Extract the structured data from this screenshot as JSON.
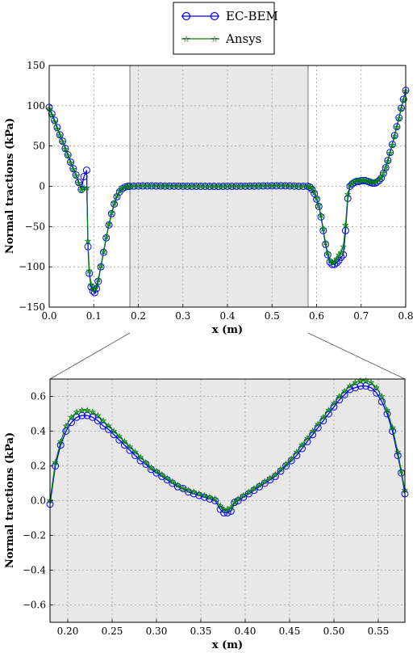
{
  "legend": {
    "entries": [
      {
        "label": "EC-BEM",
        "color": "#0000ff",
        "marker": "circle"
      },
      {
        "label": "Ansys",
        "color": "#008000",
        "marker": "star"
      }
    ]
  },
  "chart_data": [
    {
      "type": "line",
      "id": "full",
      "xlabel": "x (m)",
      "ylabel": "Normal tractions (kPa)",
      "xlim": [
        0.0,
        0.8
      ],
      "ylim": [
        -150,
        150
      ],
      "xticks": [
        0.0,
        0.1,
        0.2,
        0.3,
        0.4,
        0.5,
        0.6,
        0.7,
        0.8
      ],
      "xtick_labels": [
        "0.0",
        "0.1",
        "0.2",
        "0.3",
        "0.4",
        "0.5",
        "0.6",
        "0.7",
        "0.8"
      ],
      "yticks": [
        150,
        100,
        50,
        0,
        -50,
        -100,
        -150
      ],
      "ytick_labels": [
        "150",
        "100",
        "50",
        "0",
        "−50",
        "−100",
        "−150"
      ],
      "grid": true,
      "zoom_region": [
        0.18,
        0.58
      ],
      "series": [
        {
          "name": "EC-BEM",
          "x": [
            0.0,
            0.006,
            0.012,
            0.018,
            0.024,
            0.03,
            0.036,
            0.042,
            0.048,
            0.054,
            0.06,
            0.066,
            0.072,
            0.078,
            0.084,
            0.087,
            0.09,
            0.094,
            0.098,
            0.102,
            0.106,
            0.11,
            0.116,
            0.122,
            0.128,
            0.134,
            0.14,
            0.146,
            0.152,
            0.158,
            0.164,
            0.17,
            0.176,
            0.18,
            0.19,
            0.2,
            0.21,
            0.22,
            0.23,
            0.24,
            0.25,
            0.26,
            0.27,
            0.28,
            0.29,
            0.3,
            0.31,
            0.32,
            0.33,
            0.34,
            0.35,
            0.36,
            0.37,
            0.38,
            0.39,
            0.4,
            0.41,
            0.42,
            0.43,
            0.44,
            0.45,
            0.46,
            0.47,
            0.48,
            0.49,
            0.5,
            0.51,
            0.52,
            0.53,
            0.54,
            0.55,
            0.56,
            0.57,
            0.58,
            0.585,
            0.59,
            0.595,
            0.6,
            0.605,
            0.61,
            0.615,
            0.62,
            0.625,
            0.63,
            0.635,
            0.64,
            0.645,
            0.65,
            0.655,
            0.66,
            0.665,
            0.67,
            0.675,
            0.68,
            0.685,
            0.69,
            0.695,
            0.7,
            0.705,
            0.71,
            0.715,
            0.72,
            0.725,
            0.73,
            0.735,
            0.74,
            0.745,
            0.75,
            0.755,
            0.76,
            0.765,
            0.77,
            0.775,
            0.78,
            0.785,
            0.79,
            0.795,
            0.8
          ],
          "y": [
            98,
            90,
            82,
            73,
            64,
            56,
            47,
            39,
            30,
            22,
            14,
            5,
            -4,
            12,
            20,
            -75,
            -108,
            -125,
            -130,
            -132,
            -127,
            -118,
            -100,
            -82,
            -64,
            -48,
            -34,
            -22,
            -13,
            -7,
            -3,
            -1,
            0,
            -0.02,
            0.2,
            0.38,
            0.47,
            0.49,
            0.47,
            0.42,
            0.36,
            0.3,
            0.24,
            0.19,
            0.15,
            0.12,
            0.09,
            0.06,
            0.04,
            0.02,
            0.0,
            -0.01,
            -0.04,
            -0.07,
            0.0,
            0.02,
            0.05,
            0.08,
            0.12,
            0.17,
            0.23,
            0.3,
            0.38,
            0.46,
            0.54,
            0.61,
            0.65,
            0.66,
            0.6,
            0.45,
            0.25,
            0.04,
            0.0,
            0.04,
            -1,
            -4,
            -9,
            -16,
            -25,
            -38,
            -55,
            -72,
            -85,
            -94,
            -97,
            -97,
            -95,
            -92,
            -88,
            -85,
            -55,
            -15,
            0,
            3,
            5,
            6,
            6,
            7,
            7,
            7,
            6,
            5,
            4,
            4,
            5,
            7,
            10,
            16,
            23,
            32,
            42,
            52,
            63,
            74,
            85,
            97,
            108,
            119
          ]
        },
        {
          "name": "Ansys",
          "x": [
            0.0,
            0.006,
            0.012,
            0.018,
            0.024,
            0.03,
            0.036,
            0.042,
            0.048,
            0.054,
            0.06,
            0.066,
            0.072,
            0.078,
            0.084,
            0.087,
            0.09,
            0.094,
            0.098,
            0.102,
            0.106,
            0.11,
            0.116,
            0.122,
            0.128,
            0.134,
            0.14,
            0.146,
            0.152,
            0.158,
            0.164,
            0.17,
            0.176,
            0.18,
            0.19,
            0.2,
            0.21,
            0.22,
            0.23,
            0.24,
            0.25,
            0.26,
            0.27,
            0.28,
            0.29,
            0.3,
            0.31,
            0.32,
            0.33,
            0.34,
            0.35,
            0.36,
            0.37,
            0.38,
            0.39,
            0.4,
            0.41,
            0.42,
            0.43,
            0.44,
            0.45,
            0.46,
            0.47,
            0.48,
            0.49,
            0.5,
            0.51,
            0.52,
            0.53,
            0.54,
            0.55,
            0.56,
            0.57,
            0.58,
            0.585,
            0.59,
            0.595,
            0.6,
            0.605,
            0.61,
            0.615,
            0.62,
            0.625,
            0.63,
            0.635,
            0.64,
            0.645,
            0.65,
            0.655,
            0.66,
            0.665,
            0.67,
            0.675,
            0.68,
            0.685,
            0.69,
            0.695,
            0.7,
            0.705,
            0.71,
            0.715,
            0.72,
            0.725,
            0.73,
            0.735,
            0.74,
            0.745,
            0.75,
            0.755,
            0.76,
            0.765,
            0.77,
            0.775,
            0.78,
            0.785,
            0.79,
            0.795,
            0.8
          ],
          "y": [
            96,
            88,
            80,
            71,
            63,
            55,
            46,
            38,
            29,
            21,
            13,
            4,
            -5,
            -2,
            -2,
            -68,
            -105,
            -122,
            -128,
            -128,
            -124,
            -116,
            -99,
            -81,
            -63,
            -47,
            -33,
            -21,
            -12,
            -6,
            -2,
            -1,
            0,
            0.0,
            0.22,
            0.41,
            0.5,
            0.52,
            0.5,
            0.45,
            0.38,
            0.32,
            0.26,
            0.21,
            0.16,
            0.13,
            0.1,
            0.07,
            0.05,
            0.03,
            0.01,
            0.0,
            -0.02,
            -0.04,
            0.0,
            0.03,
            0.06,
            0.09,
            0.13,
            0.18,
            0.24,
            0.31,
            0.39,
            0.47,
            0.56,
            0.63,
            0.67,
            0.68,
            0.63,
            0.49,
            0.29,
            0.09,
            0.0,
            0.0,
            -1,
            -3,
            -8,
            -15,
            -24,
            -36,
            -53,
            -70,
            -83,
            -92,
            -95,
            -94,
            -90,
            -85,
            -82,
            -75,
            -48,
            -10,
            1,
            4,
            6,
            7,
            7,
            7,
            7,
            7,
            6,
            6,
            5,
            5,
            6,
            8,
            11,
            16,
            23,
            31,
            41,
            51,
            62,
            73,
            84,
            96,
            107,
            118
          ]
        }
      ]
    },
    {
      "type": "line",
      "id": "zoom",
      "xlabel": "x (m)",
      "ylabel": "Normal tractions (kPa)",
      "xlim": [
        0.18,
        0.58
      ],
      "ylim": [
        -0.7,
        0.7
      ],
      "xticks": [
        0.2,
        0.25,
        0.3,
        0.35,
        0.4,
        0.45,
        0.5,
        0.55
      ],
      "xtick_labels": [
        "0.20",
        "0.25",
        "0.30",
        "0.35",
        "0.40",
        "0.45",
        "0.50",
        "0.55"
      ],
      "yticks": [
        0.6,
        0.4,
        0.2,
        0.0,
        -0.2,
        -0.4,
        -0.6
      ],
      "ytick_labels": [
        "0.6",
        "0.4",
        "0.2",
        "0.0",
        "−0.2",
        "−0.4",
        "−0.6"
      ],
      "grid": true,
      "series": [
        {
          "name": "EC-BEM",
          "x": [
            0.18,
            0.186,
            0.192,
            0.198,
            0.204,
            0.21,
            0.216,
            0.222,
            0.228,
            0.234,
            0.24,
            0.246,
            0.252,
            0.258,
            0.264,
            0.27,
            0.276,
            0.282,
            0.288,
            0.294,
            0.3,
            0.306,
            0.312,
            0.318,
            0.324,
            0.33,
            0.336,
            0.342,
            0.348,
            0.354,
            0.36,
            0.366,
            0.372,
            0.376,
            0.38,
            0.384,
            0.388,
            0.392,
            0.398,
            0.404,
            0.41,
            0.416,
            0.422,
            0.428,
            0.434,
            0.44,
            0.446,
            0.452,
            0.458,
            0.464,
            0.47,
            0.476,
            0.482,
            0.488,
            0.494,
            0.5,
            0.506,
            0.512,
            0.518,
            0.524,
            0.53,
            0.536,
            0.542,
            0.548,
            0.554,
            0.56,
            0.566,
            0.572,
            0.576,
            0.58
          ],
          "y": [
            -0.02,
            0.2,
            0.32,
            0.4,
            0.45,
            0.48,
            0.49,
            0.49,
            0.48,
            0.46,
            0.43,
            0.41,
            0.38,
            0.35,
            0.32,
            0.29,
            0.26,
            0.23,
            0.21,
            0.18,
            0.16,
            0.14,
            0.12,
            0.1,
            0.08,
            0.07,
            0.05,
            0.04,
            0.03,
            0.02,
            0.01,
            0.0,
            -0.05,
            -0.07,
            -0.07,
            -0.06,
            -0.01,
            0.0,
            0.02,
            0.04,
            0.06,
            0.08,
            0.1,
            0.12,
            0.14,
            0.17,
            0.2,
            0.23,
            0.26,
            0.3,
            0.34,
            0.38,
            0.42,
            0.46,
            0.5,
            0.54,
            0.58,
            0.61,
            0.64,
            0.65,
            0.66,
            0.66,
            0.65,
            0.62,
            0.57,
            0.5,
            0.4,
            0.26,
            0.16,
            0.04
          ]
        },
        {
          "name": "Ansys",
          "x": [
            0.18,
            0.186,
            0.192,
            0.198,
            0.204,
            0.21,
            0.216,
            0.222,
            0.228,
            0.234,
            0.24,
            0.246,
            0.252,
            0.258,
            0.264,
            0.27,
            0.276,
            0.282,
            0.288,
            0.294,
            0.3,
            0.306,
            0.312,
            0.318,
            0.324,
            0.33,
            0.336,
            0.342,
            0.348,
            0.354,
            0.36,
            0.366,
            0.372,
            0.376,
            0.38,
            0.384,
            0.388,
            0.392,
            0.398,
            0.404,
            0.41,
            0.416,
            0.422,
            0.428,
            0.434,
            0.44,
            0.446,
            0.452,
            0.458,
            0.464,
            0.47,
            0.476,
            0.482,
            0.488,
            0.494,
            0.5,
            0.506,
            0.512,
            0.518,
            0.524,
            0.53,
            0.536,
            0.542,
            0.548,
            0.554,
            0.56,
            0.566,
            0.572,
            0.576,
            0.58
          ],
          "y": [
            0.0,
            0.22,
            0.34,
            0.43,
            0.48,
            0.51,
            0.52,
            0.52,
            0.51,
            0.49,
            0.46,
            0.43,
            0.4,
            0.37,
            0.34,
            0.31,
            0.28,
            0.25,
            0.22,
            0.19,
            0.17,
            0.15,
            0.13,
            0.11,
            0.09,
            0.07,
            0.06,
            0.05,
            0.04,
            0.03,
            0.02,
            0.01,
            -0.03,
            -0.05,
            -0.05,
            -0.04,
            -0.01,
            0.01,
            0.03,
            0.05,
            0.07,
            0.09,
            0.11,
            0.13,
            0.15,
            0.18,
            0.21,
            0.24,
            0.28,
            0.32,
            0.36,
            0.4,
            0.44,
            0.48,
            0.52,
            0.56,
            0.6,
            0.63,
            0.66,
            0.68,
            0.69,
            0.69,
            0.68,
            0.65,
            0.6,
            0.52,
            0.42,
            0.28,
            0.17,
            0.06
          ]
        }
      ]
    }
  ]
}
